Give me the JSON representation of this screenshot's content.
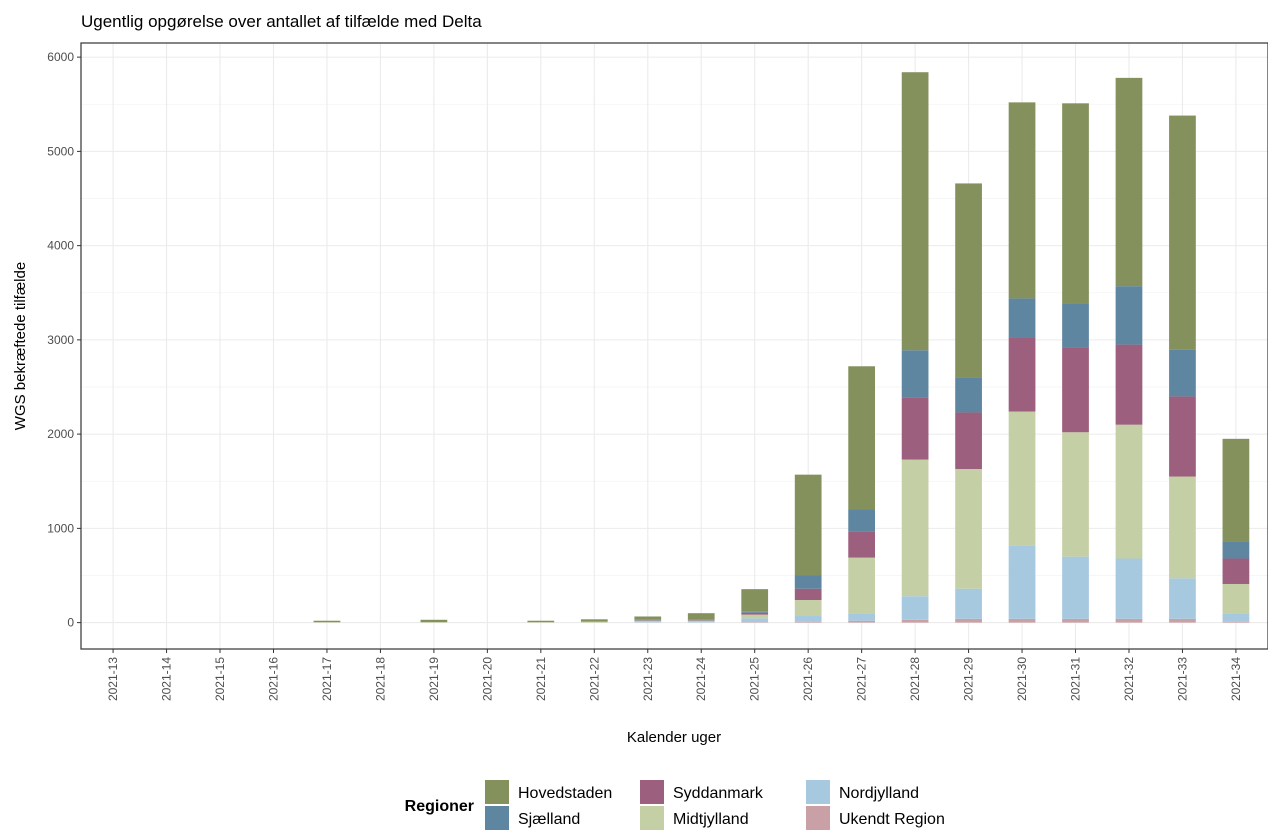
{
  "chart_data": {
    "type": "bar",
    "stacked": true,
    "title": "Ugentlig opgørelse over antallet af tilfælde med Delta",
    "xlabel": "Kalender uger",
    "ylabel": "WGS bekræftede tilfælde",
    "ylim": [
      -280,
      6150
    ],
    "yticks": [
      0,
      1000,
      2000,
      3000,
      4000,
      5000,
      6000
    ],
    "grid": true,
    "legend_title": "Regioner",
    "legend_position": "bottom",
    "categories": [
      "2021-13",
      "2021-14",
      "2021-15",
      "2021-16",
      "2021-17",
      "2021-18",
      "2021-19",
      "2021-20",
      "2021-21",
      "2021-22",
      "2021-23",
      "2021-24",
      "2021-25",
      "2021-26",
      "2021-27",
      "2021-28",
      "2021-29",
      "2021-30",
      "2021-31",
      "2021-32",
      "2021-33",
      "2021-34"
    ],
    "series": [
      {
        "name": "Ukendt Region",
        "color": "#c9a0a5",
        "values": [
          0,
          0,
          0,
          0,
          0,
          0,
          0,
          0,
          0,
          0,
          0,
          0,
          5,
          10,
          20,
          30,
          40,
          40,
          40,
          40,
          40,
          10
        ]
      },
      {
        "name": "Nordjylland",
        "color": "#a6c9e0",
        "values": [
          0,
          0,
          0,
          0,
          0,
          0,
          0,
          0,
          0,
          0,
          5,
          5,
          40,
          60,
          80,
          250,
          320,
          780,
          660,
          640,
          430,
          90
        ]
      },
      {
        "name": "Midtjylland",
        "color": "#c5cfa5",
        "values": [
          0,
          0,
          0,
          0,
          5,
          0,
          5,
          0,
          5,
          10,
          15,
          15,
          40,
          170,
          590,
          1450,
          1270,
          1420,
          1320,
          1420,
          1080,
          310
        ]
      },
      {
        "name": "Syddanmark",
        "color": "#9c5f7e",
        "values": [
          0,
          0,
          0,
          0,
          0,
          0,
          0,
          0,
          0,
          0,
          5,
          5,
          20,
          120,
          280,
          660,
          600,
          780,
          900,
          850,
          850,
          270
        ]
      },
      {
        "name": "Sjælland",
        "color": "#5e86a0",
        "values": [
          0,
          0,
          0,
          0,
          0,
          0,
          0,
          0,
          0,
          0,
          5,
          5,
          10,
          140,
          230,
          500,
          370,
          420,
          470,
          620,
          500,
          180
        ]
      },
      {
        "name": "Hovedstaden",
        "color": "#84915d",
        "values": [
          0,
          0,
          0,
          0,
          15,
          0,
          25,
          0,
          15,
          25,
          35,
          70,
          240,
          1070,
          1520,
          2950,
          2060,
          2080,
          2120,
          2210,
          2480,
          1090
        ]
      }
    ],
    "legend_order": [
      "Hovedstaden",
      "Sjælland",
      "Syddanmark",
      "Midtjylland",
      "Nordjylland",
      "Ukendt Region"
    ]
  }
}
